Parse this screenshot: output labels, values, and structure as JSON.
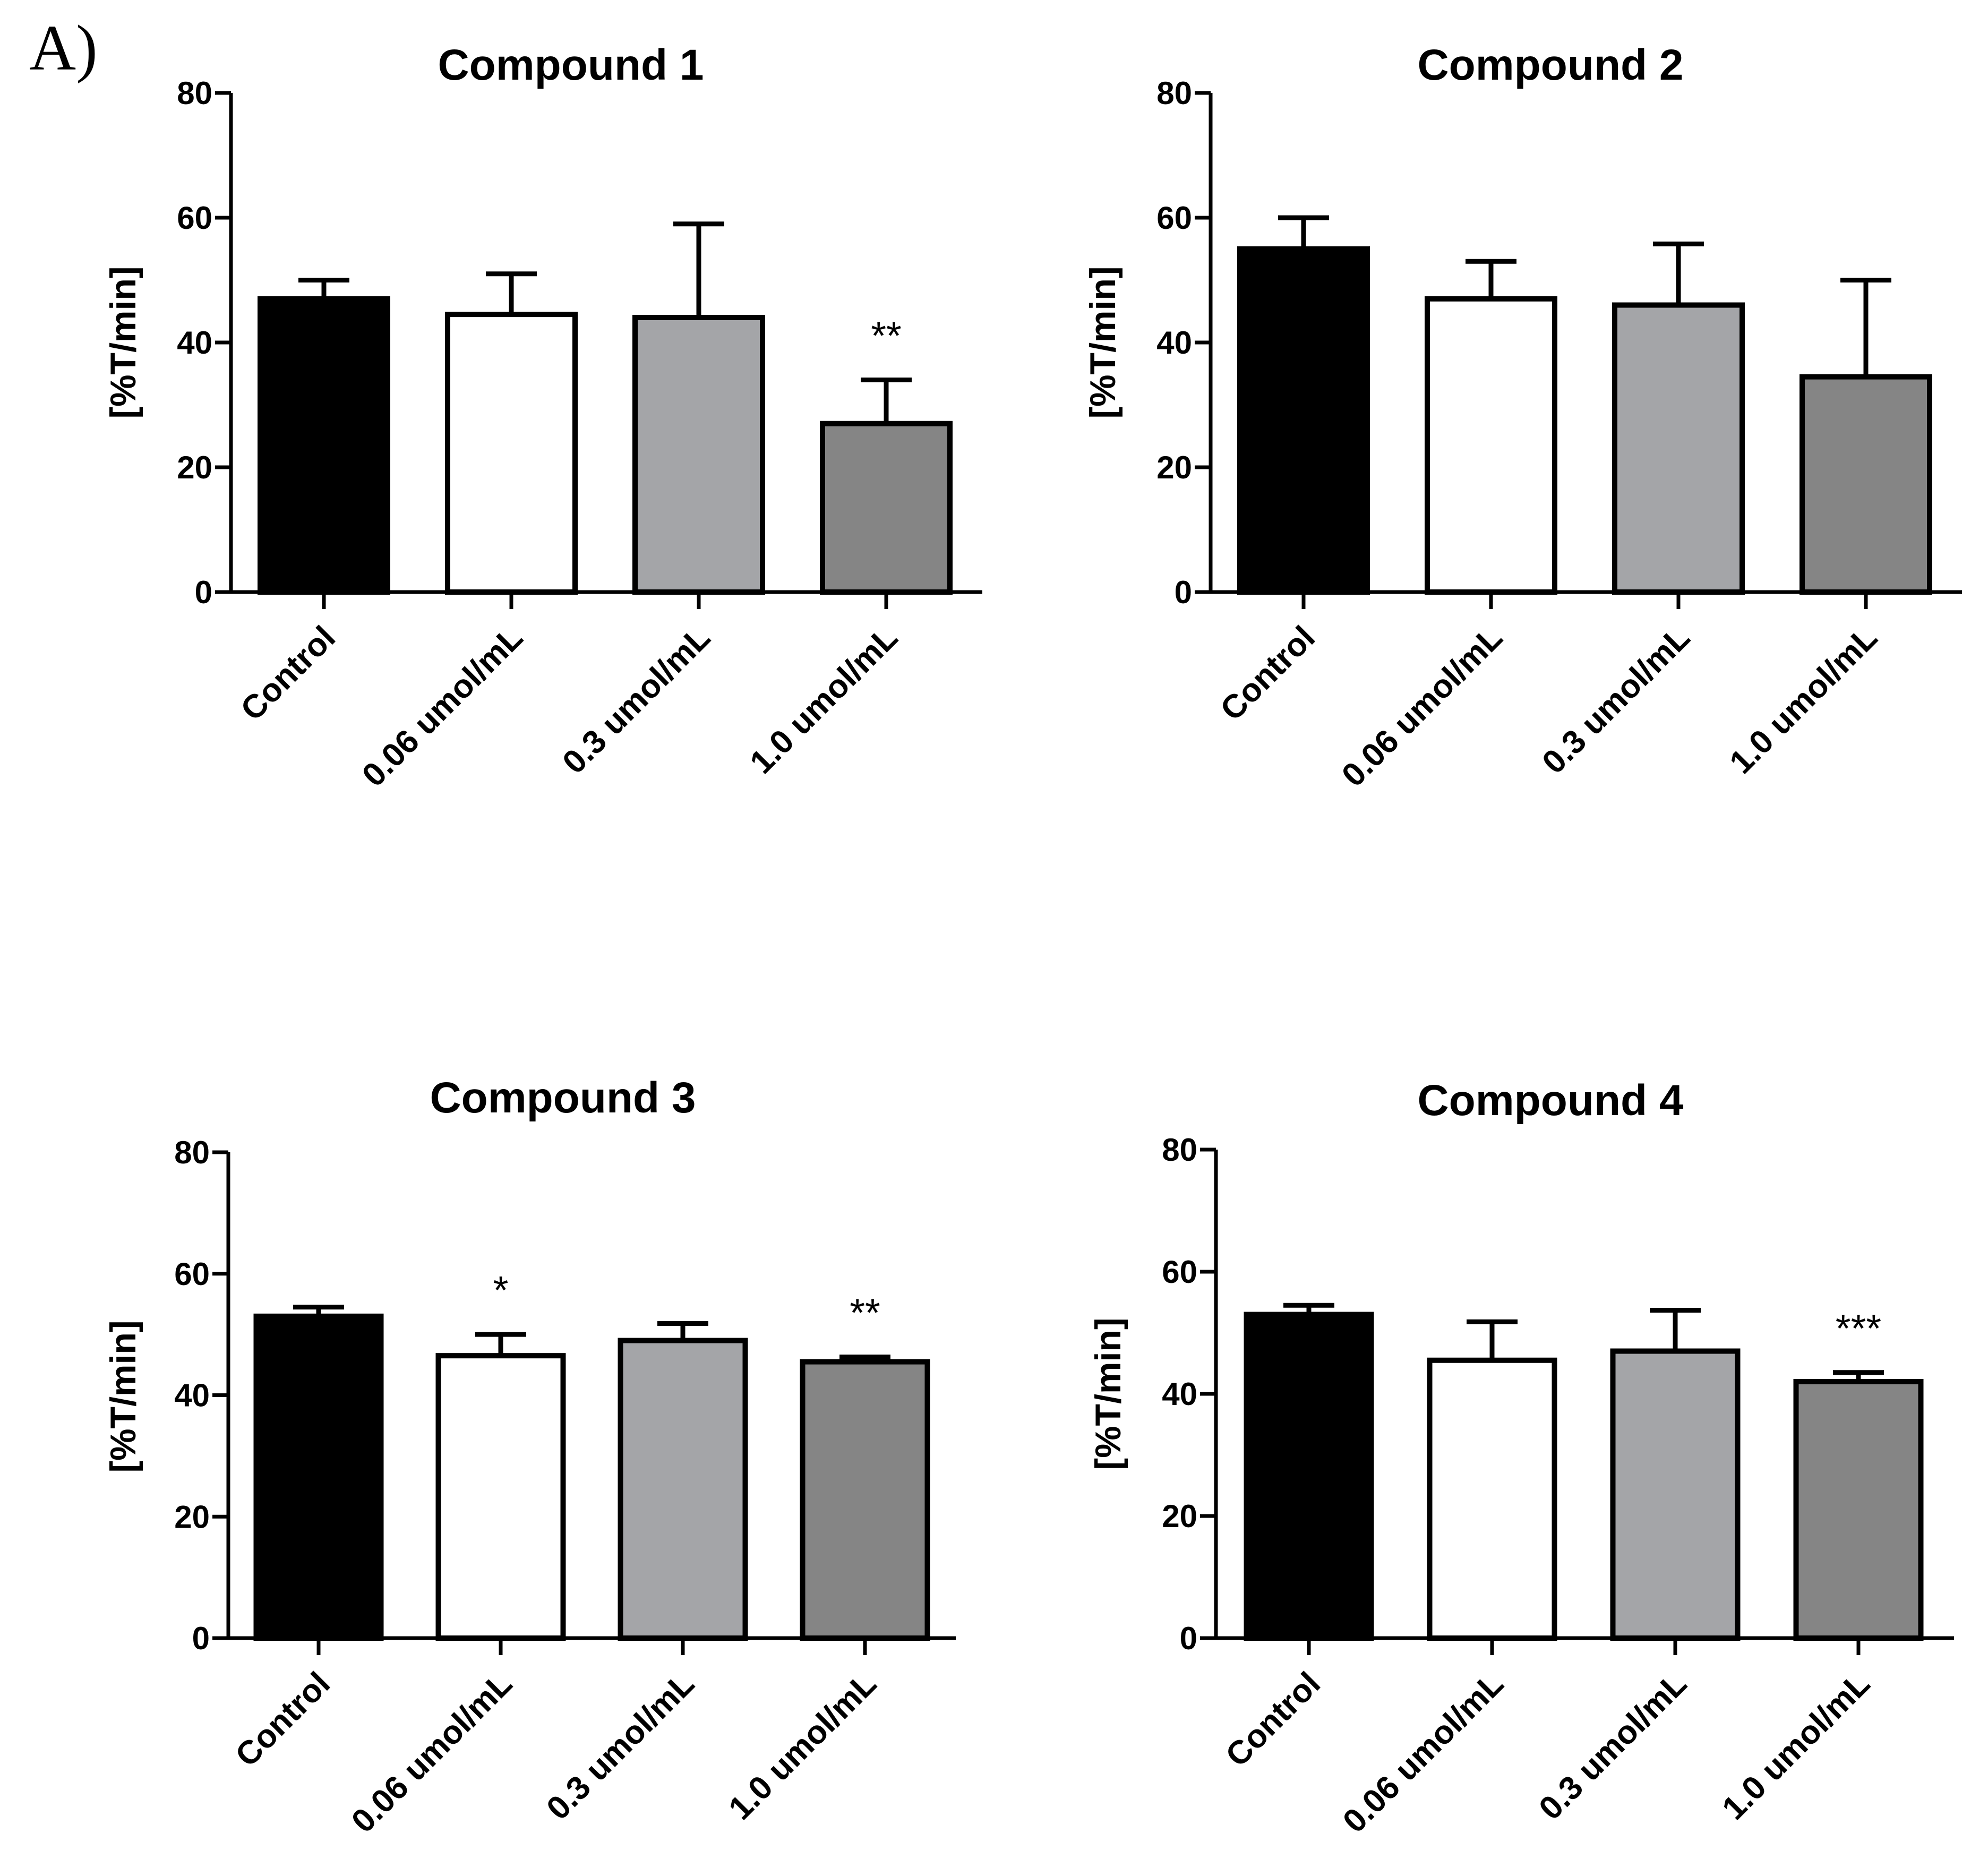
{
  "figure_label": "A)",
  "chart_data": [
    {
      "type": "bar",
      "title": "Compound 1",
      "ylabel": "[%T/min]",
      "xlabel": "",
      "ylim": [
        0,
        80
      ],
      "yticks": [
        0,
        20,
        40,
        60,
        80
      ],
      "categories": [
        "Control",
        "0.06 umol/mL",
        "0.3 umol/mL",
        "1.0 umol/mL"
      ],
      "values": [
        47,
        44.5,
        44,
        27
      ],
      "errors": [
        3,
        6.5,
        15,
        7
      ],
      "annotations": [
        "",
        "",
        "",
        "**"
      ],
      "colors": [
        "#000000",
        "#ffffff",
        "#a4a5a8",
        "#858585"
      ]
    },
    {
      "type": "bar",
      "title": "Compound 2",
      "ylabel": "[%T/min]",
      "xlabel": "",
      "ylim": [
        0,
        80
      ],
      "yticks": [
        0,
        20,
        40,
        60,
        80
      ],
      "categories": [
        "Control",
        "0.06 umol/mL",
        "0.3 umol/mL",
        "1.0 umol/mL"
      ],
      "values": [
        55,
        47,
        46,
        34.5
      ],
      "errors": [
        5,
        6,
        9.8,
        15.5
      ],
      "annotations": [
        "",
        "",
        "",
        ""
      ],
      "colors": [
        "#000000",
        "#ffffff",
        "#a4a5a8",
        "#858585"
      ]
    },
    {
      "type": "bar",
      "title": "Compound 3",
      "ylabel": "[%T/min]",
      "xlabel": "",
      "ylim": [
        0,
        80
      ],
      "yticks": [
        0,
        20,
        40,
        60,
        80
      ],
      "categories": [
        "Control",
        "0.06 umol/mL",
        "0.3 umol/mL",
        "1.0 umol/mL"
      ],
      "values": [
        53,
        46.5,
        49,
        45.5
      ],
      "errors": [
        1.5,
        3.5,
        2.8,
        0.8
      ],
      "annotations": [
        "",
        "*",
        "",
        "**"
      ],
      "colors": [
        "#000000",
        "#ffffff",
        "#a4a5a8",
        "#858585"
      ]
    },
    {
      "type": "bar",
      "title": "Compound 4",
      "ylabel": "[%T/min]",
      "xlabel": "",
      "ylim": [
        0,
        80
      ],
      "yticks": [
        0,
        20,
        40,
        60,
        80
      ],
      "categories": [
        "Control",
        "0.06 umol/mL",
        "0.3 umol/mL",
        "1.0 umol/mL"
      ],
      "values": [
        53,
        45.5,
        47,
        42
      ],
      "errors": [
        1.5,
        6.3,
        6.7,
        1.5
      ],
      "annotations": [
        "",
        "",
        "",
        "***"
      ],
      "colors": [
        "#000000",
        "#ffffff",
        "#a4a5a8",
        "#858585"
      ]
    }
  ]
}
